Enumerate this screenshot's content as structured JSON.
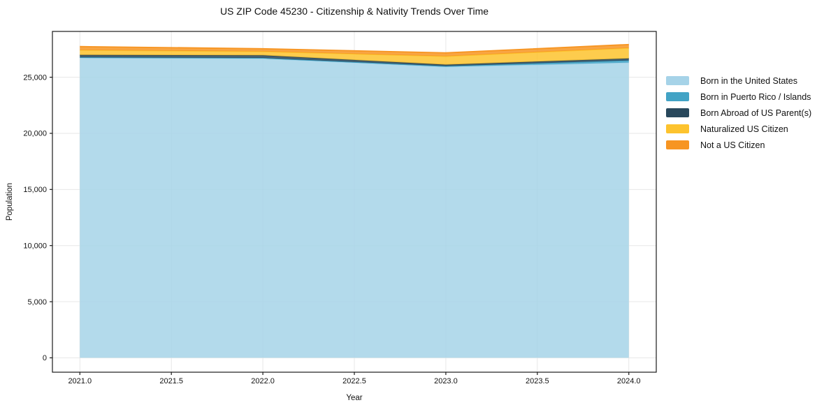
{
  "chart_data": {
    "type": "area",
    "stacked": true,
    "title": "US ZIP Code 45230 - Citizenship & Nativity Trends Over Time",
    "xlabel": "Year",
    "ylabel": "Population",
    "x": [
      2021,
      2022,
      2023,
      2024
    ],
    "series": [
      {
        "name": "Born in the United States",
        "color": "#a6d3e8",
        "values": [
          26730,
          26670,
          25930,
          26300
        ]
      },
      {
        "name": "Born in Puerto Rico / Islands",
        "color": "#42a3c5",
        "values": [
          40,
          45,
          55,
          190
        ]
      },
      {
        "name": "Born Abroad of US Parent(s)",
        "color": "#29485c",
        "values": [
          210,
          235,
          130,
          180
        ]
      },
      {
        "name": "Naturalized US Citizen",
        "color": "#fdc32e",
        "values": [
          435,
          340,
          745,
          930
        ]
      },
      {
        "name": "Not a US Citizen",
        "color": "#f79522",
        "values": [
          315,
          250,
          310,
          315
        ]
      }
    ],
    "xlim": [
      2020.85,
      2024.15
    ],
    "ylim": [
      -1280,
      29080
    ],
    "x_ticks": {
      "values": [
        2021.0,
        2021.5,
        2022.0,
        2022.5,
        2023.0,
        2023.5,
        2024.0
      ],
      "labels": [
        "2021.0",
        "2021.5",
        "2022.0",
        "2022.5",
        "2023.0",
        "2023.5",
        "2024.0"
      ]
    },
    "y_ticks": {
      "values": [
        0,
        5000,
        10000,
        15000,
        20000,
        25000
      ],
      "labels": [
        "0",
        "5,000",
        "10,000",
        "15,000",
        "20,000",
        "25,000"
      ]
    },
    "grid": true,
    "grid_color": "#e7e7e7",
    "fill_opacity": 0.85,
    "spine_color": "#1a1a1a",
    "legend_position": "right-outside"
  }
}
